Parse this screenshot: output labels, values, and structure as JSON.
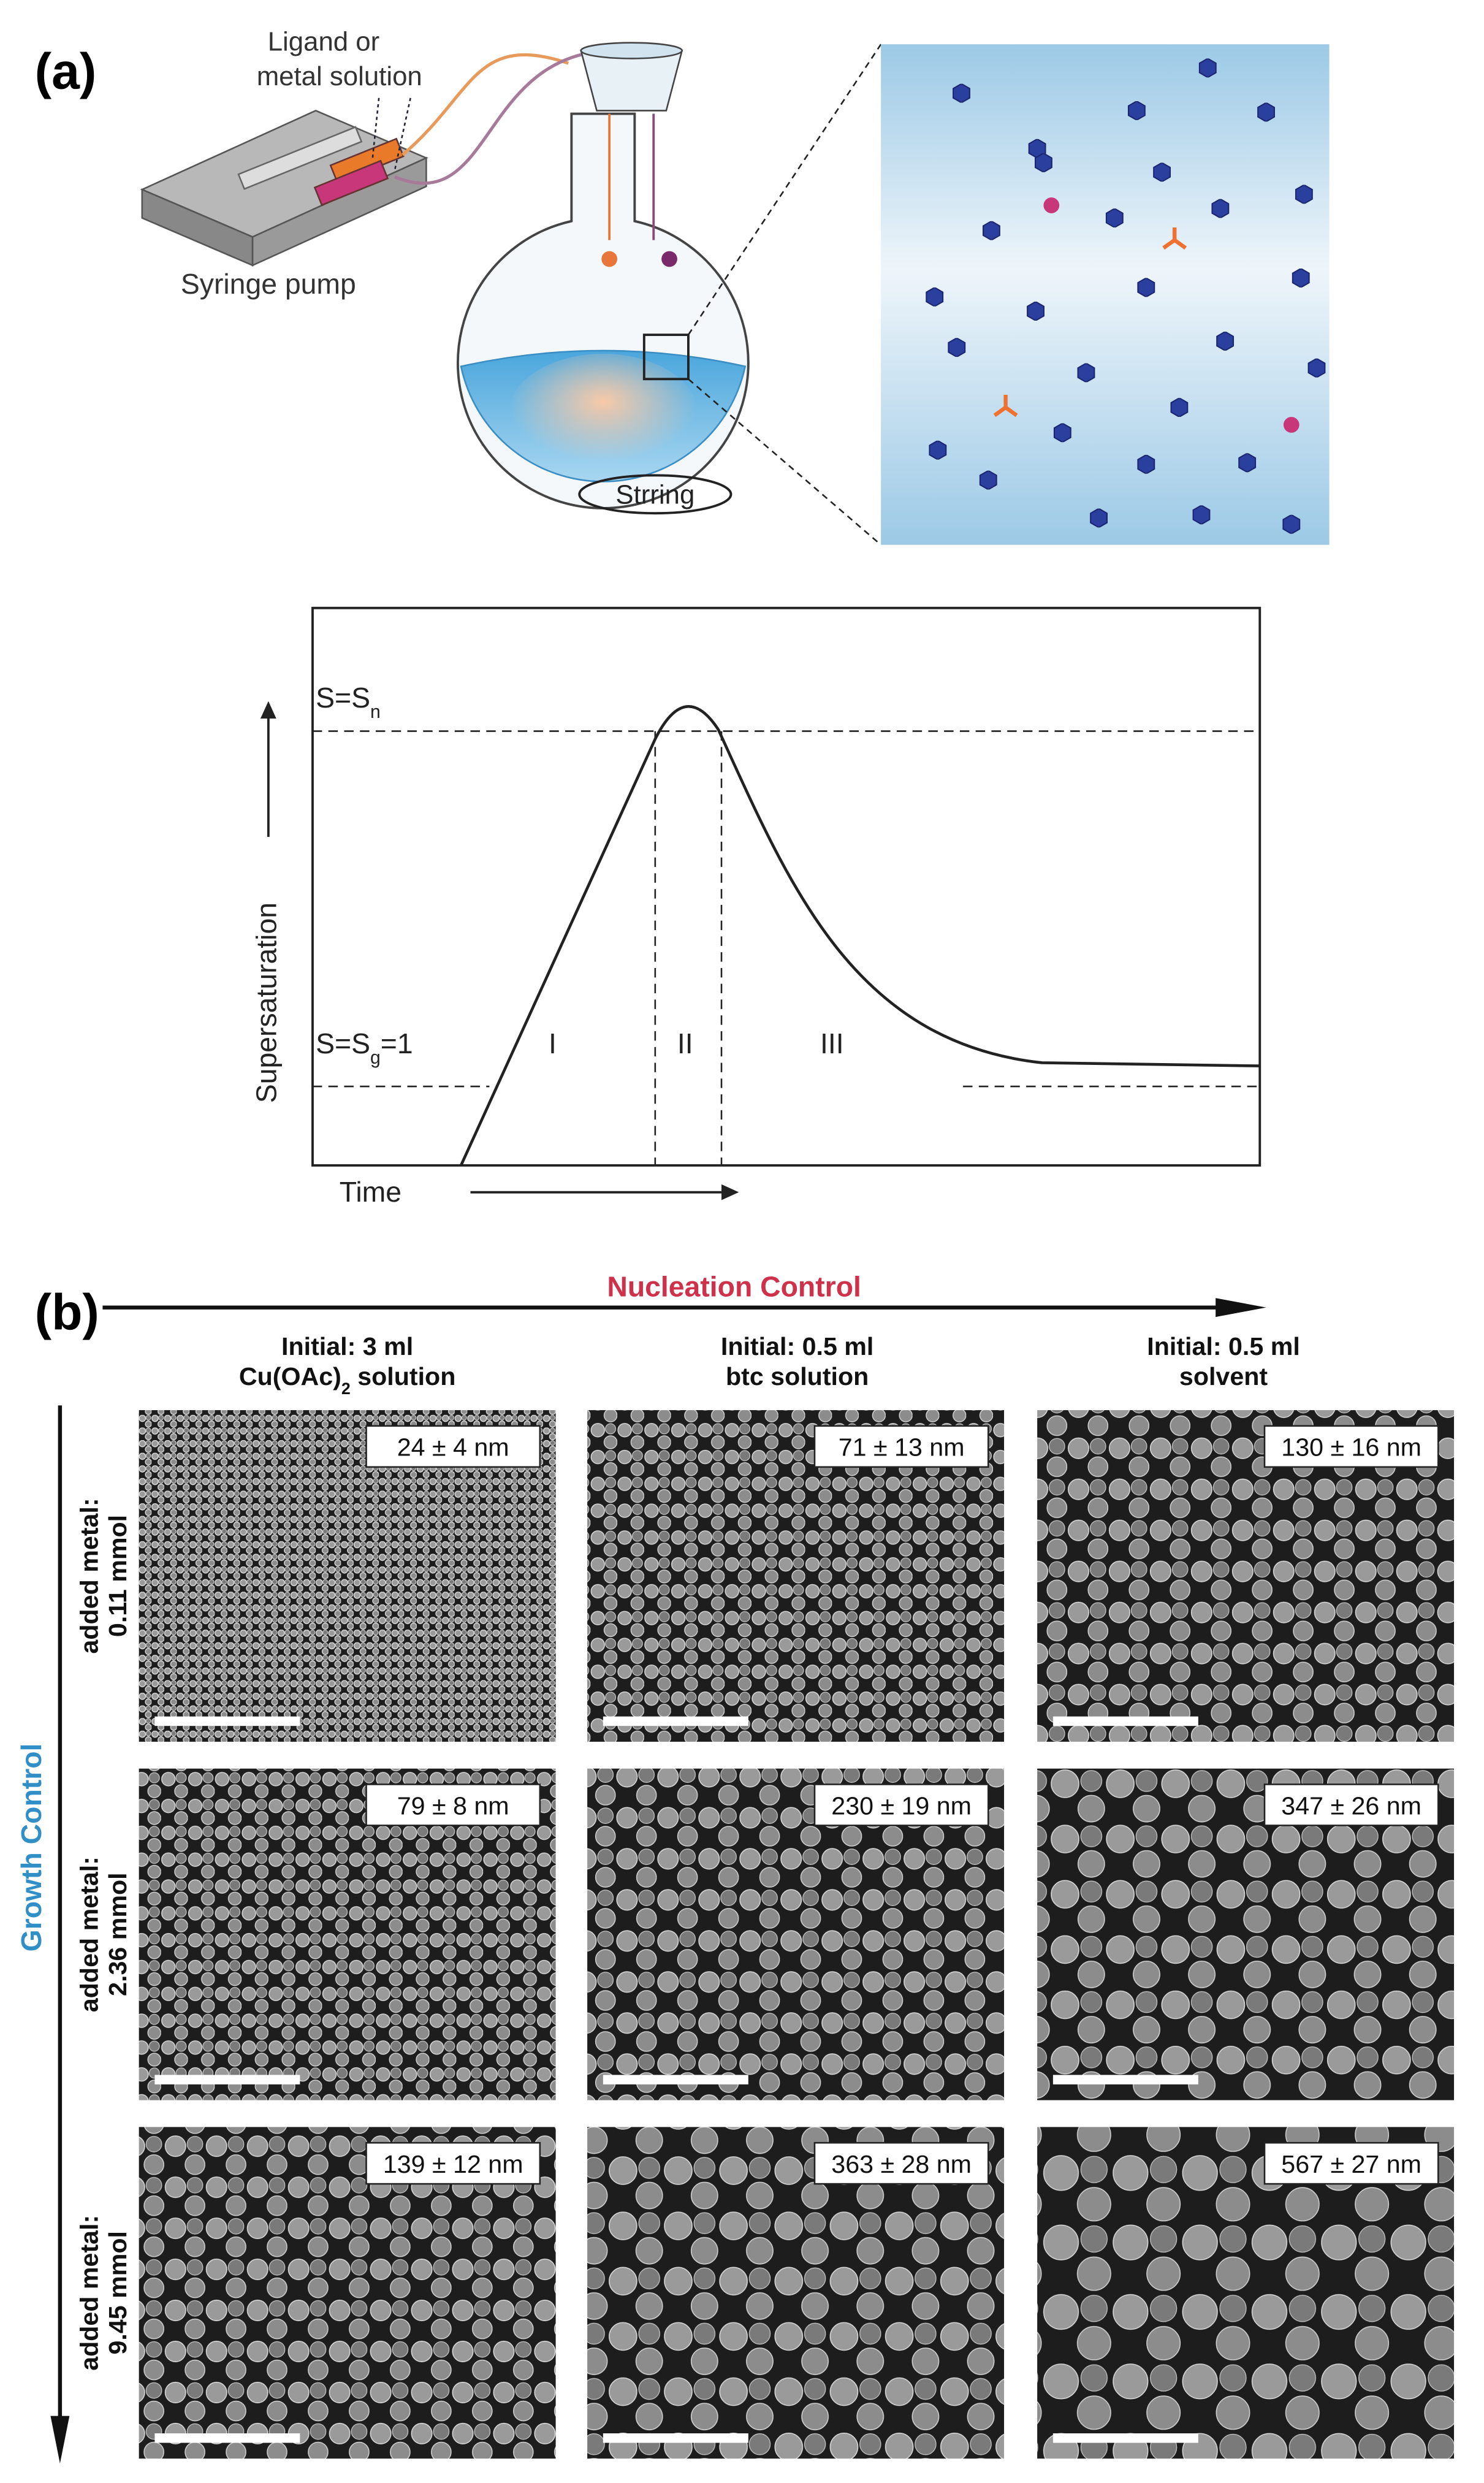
{
  "panel_a": {
    "label": "(a)",
    "syringe_label": [
      "Ligand or",
      "metal solution"
    ],
    "pump_label": "Syringe pump",
    "stirring_label": "Strring"
  },
  "graph": {
    "y_axis_label": "Supersaturation",
    "x_axis_label": "Time",
    "levels": [
      [
        "S=S",
        "n"
      ],
      [
        "S=S",
        "g",
        "=1"
      ]
    ],
    "stages": [
      "I",
      "II",
      "III"
    ]
  },
  "panel_b": {
    "label": "(b)",
    "x_axis_title": "Nucleation Control",
    "y_axis_title": "Growth Control",
    "columns": [
      {
        "line1": "Initial: 3 ml",
        "line2": [
          "Cu(OAc)",
          "2",
          " solution"
        ]
      },
      {
        "line1": "Initial: 0.5 ml",
        "line2": [
          "btc solution"
        ]
      },
      {
        "line1": "Initial: 0.5 ml",
        "line2": [
          "solvent"
        ]
      }
    ],
    "rows": [
      [
        "added metal:",
        "0.11 mmol"
      ],
      [
        "added metal:",
        "2.36 mmol"
      ],
      [
        "added metal:",
        "9.45 mmol"
      ]
    ],
    "sizes": [
      [
        "24 ± 4 nm",
        "71 ± 13 nm",
        "130 ± 16 nm"
      ],
      [
        "79 ± 8 nm",
        "230 ± 19 nm",
        "347 ± 26 nm"
      ],
      [
        "139 ± 12 nm",
        "363 ± 28 nm",
        "567 ± 27 nm"
      ]
    ]
  }
}
